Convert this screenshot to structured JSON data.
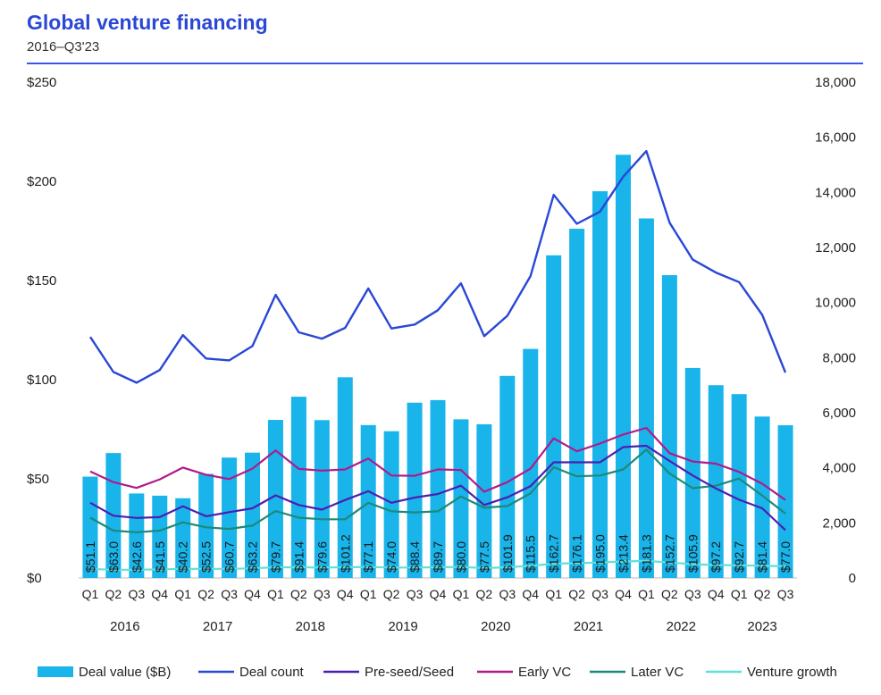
{
  "header": {
    "title": "Global venture financing",
    "subtitle": "2016–Q3'23"
  },
  "colors": {
    "title": "#2a47d6",
    "rule": "#3a57e8",
    "bars": "#19b4ea",
    "deal_count": "#2a47d6",
    "preseed": "#4a1fb0",
    "early_vc": "#b01a8c",
    "later_vc": "#1c8a7a",
    "venture_growth": "#5fe0d8"
  },
  "chart_data": {
    "type": "bar",
    "title": "Global venture financing",
    "subtitle": "2016–Q3'23",
    "quarters": [
      "Q1",
      "Q2",
      "Q3",
      "Q4",
      "Q1",
      "Q2",
      "Q3",
      "Q4",
      "Q1",
      "Q2",
      "Q3",
      "Q4",
      "Q1",
      "Q2",
      "Q3",
      "Q4",
      "Q1",
      "Q2",
      "Q3",
      "Q4",
      "Q1",
      "Q2",
      "Q3",
      "Q4",
      "Q1",
      "Q2",
      "Q3",
      "Q4",
      "Q1",
      "Q2",
      "Q3"
    ],
    "years": [
      {
        "label": "2016",
        "count": 4
      },
      {
        "label": "2017",
        "count": 4
      },
      {
        "label": "2018",
        "count": 4
      },
      {
        "label": "2019",
        "count": 4
      },
      {
        "label": "2020",
        "count": 4
      },
      {
        "label": "2021",
        "count": 4
      },
      {
        "label": "2022",
        "count": 4
      },
      {
        "label": "2023",
        "count": 3
      }
    ],
    "left_axis": {
      "ticks": [
        0,
        50,
        100,
        150,
        200,
        250
      ],
      "tick_labels": [
        "$0",
        "$50",
        "$100",
        "$150",
        "$200",
        "$250"
      ],
      "range": [
        0,
        250
      ]
    },
    "right_axis": {
      "ticks": [
        0,
        2000,
        4000,
        6000,
        8000,
        10000,
        12000,
        14000,
        16000,
        18000
      ],
      "tick_labels": [
        "0",
        "2,000",
        "4,000",
        "6,000",
        "8,000",
        "10,000",
        "12,000",
        "14,000",
        "16,000",
        "18,000"
      ],
      "range": [
        0,
        18000
      ]
    },
    "deal_value": {
      "name": "Deal value ($B)",
      "values": [
        51.1,
        63.0,
        42.6,
        41.5,
        40.2,
        52.5,
        60.7,
        63.2,
        79.7,
        91.4,
        79.6,
        101.2,
        77.1,
        74.0,
        88.4,
        89.7,
        80.0,
        77.5,
        101.9,
        115.5,
        162.7,
        176.1,
        195.0,
        213.4,
        181.3,
        152.7,
        105.9,
        97.2,
        92.7,
        81.4,
        77.0
      ],
      "labels": [
        "$51.1",
        "$63.0",
        "$42.6",
        "$41.5",
        "$40.2",
        "$52.5",
        "$60.7",
        "$63.2",
        "$79.7",
        "$91.4",
        "$79.6",
        "$101.2",
        "$77.1",
        "$74.0",
        "$88.4",
        "$89.7",
        "$80.0",
        "$77.5",
        "$101.9",
        "$115.5",
        "$162.7",
        "$176.1",
        "$195.0",
        "$213.4",
        "$181.3",
        "$152.7",
        "$105.9",
        "$97.2",
        "$92.7",
        "$81.4",
        "$77.0"
      ]
    },
    "series": [
      {
        "name": "Deal count",
        "axis": "right",
        "values": [
          8750,
          7480,
          7090,
          7550,
          8820,
          7970,
          7900,
          8420,
          10280,
          8920,
          8690,
          9080,
          10510,
          9060,
          9200,
          9720,
          10700,
          8780,
          9520,
          10960,
          13910,
          12860,
          13300,
          14570,
          15500,
          12900,
          11560,
          11090,
          10740,
          9550,
          7460
        ]
      },
      {
        "name": "Pre-seed/Seed",
        "axis": "right",
        "values": [
          2730,
          2260,
          2180,
          2210,
          2600,
          2240,
          2390,
          2530,
          3000,
          2650,
          2480,
          2830,
          3150,
          2730,
          2920,
          3050,
          3350,
          2650,
          2930,
          3330,
          4200,
          4200,
          4200,
          4750,
          4800,
          4250,
          3720,
          3250,
          2840,
          2530,
          1740
        ]
      },
      {
        "name": "Early VC",
        "axis": "right",
        "values": [
          3870,
          3480,
          3270,
          3580,
          4010,
          3750,
          3590,
          3970,
          4630,
          3960,
          3900,
          3940,
          4340,
          3720,
          3710,
          3940,
          3920,
          3130,
          3480,
          3970,
          5070,
          4600,
          4880,
          5210,
          5450,
          4530,
          4230,
          4150,
          3850,
          3420,
          2830
        ]
      },
      {
        "name": "Later VC",
        "axis": "right",
        "values": [
          2190,
          1720,
          1660,
          1720,
          2020,
          1840,
          1780,
          1900,
          2430,
          2190,
          2130,
          2130,
          2730,
          2420,
          2380,
          2420,
          2960,
          2550,
          2610,
          3070,
          4020,
          3690,
          3720,
          3940,
          4660,
          3790,
          3260,
          3350,
          3610,
          2990,
          2340
        ]
      },
      {
        "name": "Venture growth",
        "axis": "right",
        "values": [
          330,
          300,
          300,
          310,
          330,
          330,
          330,
          350,
          390,
          390,
          380,
          390,
          400,
          380,
          380,
          390,
          400,
          360,
          390,
          440,
          520,
          540,
          560,
          600,
          620,
          560,
          500,
          470,
          460,
          440,
          420
        ]
      }
    ],
    "legend": {
      "position": "bottom",
      "entries": [
        "Deal value ($B)",
        "Deal count",
        "Pre-seed/Seed",
        "Early VC",
        "Later VC",
        "Venture growth"
      ]
    },
    "grid": false
  }
}
